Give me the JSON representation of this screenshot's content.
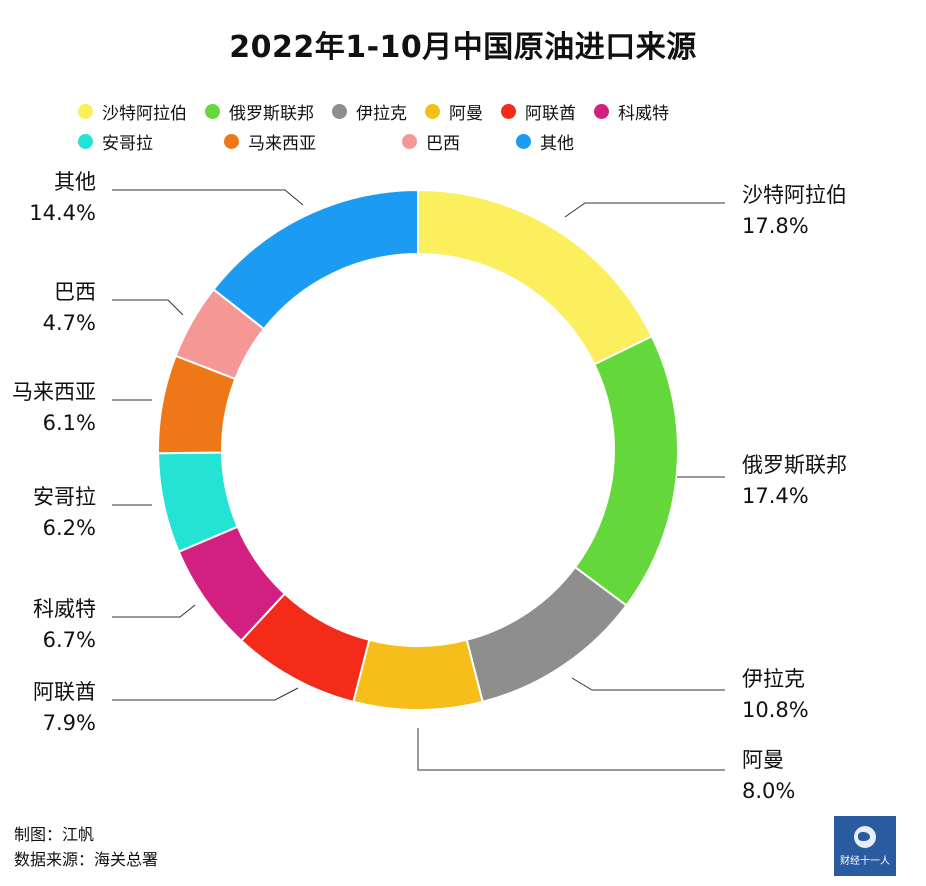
{
  "chart_data": {
    "type": "pie",
    "donut": true,
    "title": "2022年1-10月中国原油进口来源",
    "slices": [
      {
        "label": "沙特阿拉伯",
        "value": 17.8,
        "display": "17.8%",
        "color": "#FBEF5D"
      },
      {
        "label": "俄罗斯联邦",
        "value": 17.4,
        "display": "17.4%",
        "color": "#64D73B"
      },
      {
        "label": "伊拉克",
        "value": 10.8,
        "display": "10.8%",
        "color": "#8E8E8E"
      },
      {
        "label": "阿曼",
        "value": 8.0,
        "display": "8.0%",
        "color": "#F6BE1B"
      },
      {
        "label": "阿联酋",
        "value": 7.9,
        "display": "7.9%",
        "color": "#F32B18"
      },
      {
        "label": "科威特",
        "value": 6.7,
        "display": "6.7%",
        "color": "#D1207F"
      },
      {
        "label": "安哥拉",
        "value": 6.2,
        "display": "6.2%",
        "color": "#25E3D4"
      },
      {
        "label": "马来西亚",
        "value": 6.1,
        "display": "6.1%",
        "color": "#EE7717"
      },
      {
        "label": "巴西",
        "value": 4.7,
        "display": "4.7%",
        "color": "#F59895"
      },
      {
        "label": "其他",
        "value": 14.4,
        "display": "14.4%",
        "color": "#1B9BF2"
      }
    ],
    "legend": {
      "placement": "top"
    }
  },
  "footer": {
    "author": "制图：江帆",
    "source": "数据来源：海关总署"
  },
  "logo": {
    "text": "财经十一人"
  }
}
